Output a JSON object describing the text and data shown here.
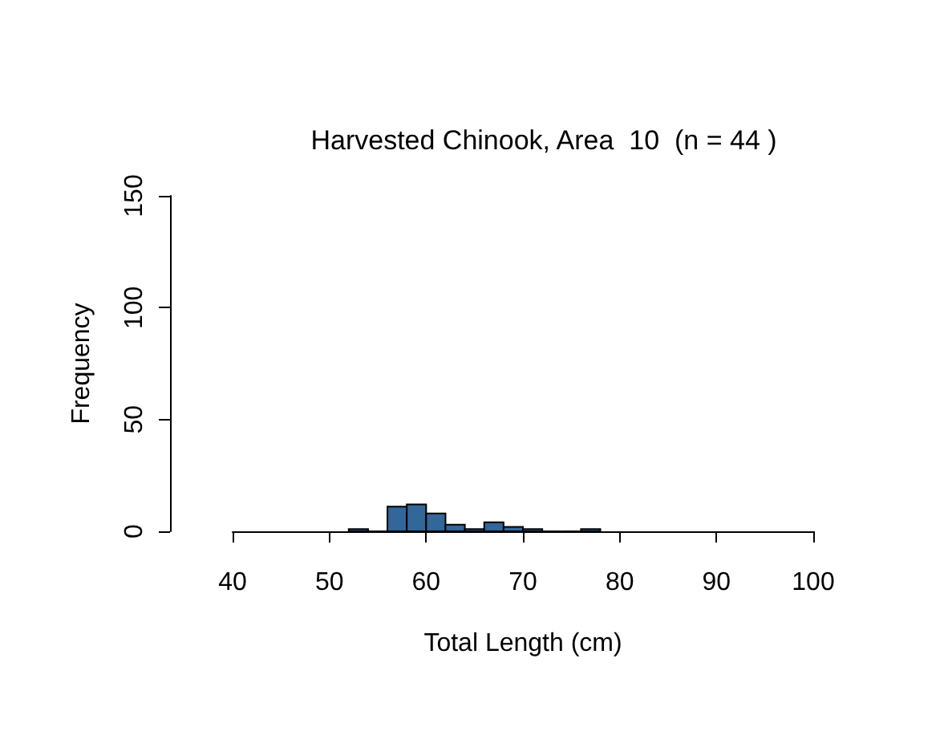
{
  "chart_data": {
    "type": "histogram",
    "title": "Harvested Chinook, Area  10  (n = 44 )",
    "xlabel": "Total Length (cm)",
    "ylabel": "Frequency",
    "bins": [
      52,
      54,
      56,
      58,
      60,
      62,
      64,
      66,
      68,
      70,
      72,
      74,
      76,
      78
    ],
    "values": [
      1,
      0,
      11,
      12,
      8,
      3,
      1,
      4,
      2,
      1,
      0,
      0,
      1
    ],
    "color": "#336699",
    "xlim": [
      40,
      100
    ],
    "xticks": [
      40,
      50,
      60,
      70,
      80,
      90,
      100
    ],
    "ylim": [
      0,
      150
    ],
    "yticks": [
      0,
      50,
      100,
      150
    ],
    "grid": false
  }
}
